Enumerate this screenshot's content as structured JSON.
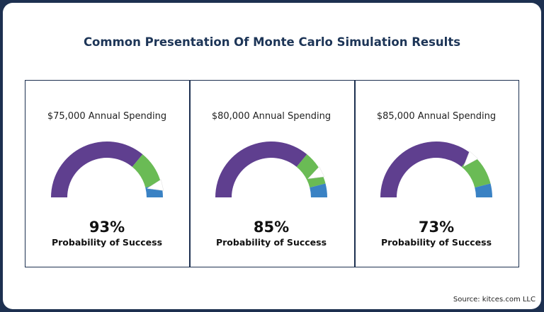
{
  "title": "Common Presentation Of Monte Carlo Simulation Results",
  "source": "Source: kitces.com LLC",
  "chart_data": [
    {
      "type": "gauge",
      "title": "$75,000 Annual Spending",
      "value": 93,
      "value_label": "93%",
      "label": "Probability of Success"
    },
    {
      "type": "gauge",
      "title": "$80,000 Annual Spending",
      "value": 85,
      "value_label": "85%",
      "label": "Probability of Success"
    },
    {
      "type": "gauge",
      "title": "$85,000 Annual Spending",
      "value": 73,
      "value_label": "73%",
      "label": "Probability of Success"
    }
  ],
  "gauge_zones": [
    {
      "from": 0,
      "to": 72,
      "color": "#5f3f8f"
    },
    {
      "from": 72,
      "to": 92,
      "color": "#6abb55"
    },
    {
      "from": 92,
      "to": 100,
      "color": "#3a82c4"
    }
  ]
}
